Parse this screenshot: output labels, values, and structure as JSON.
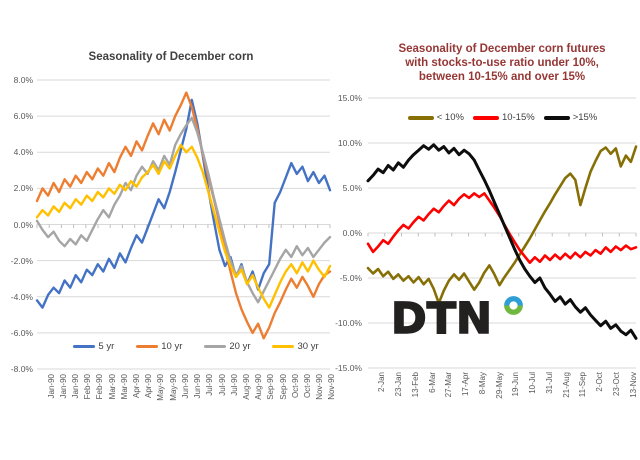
{
  "page": {
    "background": "#ffffff"
  },
  "logo": {
    "text": "DTN",
    "text_color": "#232020",
    "ring_top_color": "#2e9fd6",
    "ring_bottom_color": "#72b840"
  },
  "chart_data": [
    {
      "type": "line",
      "title": "Seasonality of December corn",
      "title_color": "#404040",
      "ylabel": "",
      "xlabel": "",
      "ylim": [
        -8,
        8
      ],
      "ytick_step": 2,
      "grid": true,
      "legend_position": "bottom-inside",
      "y_tick_labels": [
        "8.0%",
        "6.0%",
        "4.0%",
        "2.0%",
        "0.0%",
        "-2.0%",
        "-4.0%",
        "-6.0%",
        "-8.0%"
      ],
      "x_labels": [
        "Jan-90",
        "Jan-90",
        "Jan-90",
        "Feb-90",
        "Feb-90",
        "Mar-90",
        "Mar-90",
        "Apr-90",
        "Apr-90",
        "May-90",
        "May-90",
        "Jun-90",
        "Jun-90",
        "Jul-90",
        "Jul-90",
        "Jul-90",
        "Aug-90",
        "Aug-90",
        "Sep-90",
        "Sep-90",
        "Oct-90",
        "Oct-90",
        "Nov-90",
        "Nov-90"
      ],
      "series": [
        {
          "name": "5 yr",
          "color": "#4472c4",
          "values": [
            -4.2,
            -4.6,
            -3.9,
            -3.5,
            -3.8,
            -3.1,
            -3.5,
            -2.8,
            -3.2,
            -2.5,
            -2.8,
            -2.2,
            -2.6,
            -1.9,
            -2.4,
            -1.6,
            -2.1,
            -1.3,
            -0.6,
            -1.0,
            -0.2,
            0.6,
            1.4,
            0.9,
            1.8,
            2.9,
            4.1,
            5.3,
            6.9,
            5.6,
            3.8,
            1.9,
            0.2,
            -1.4,
            -2.3,
            -1.8,
            -2.9,
            -2.2,
            -3.3,
            -2.6,
            -3.6,
            -2.7,
            -2.2,
            1.2,
            1.8,
            2.6,
            3.4,
            2.8,
            3.2,
            2.4,
            2.9,
            2.3,
            2.7,
            1.9
          ]
        },
        {
          "name": "10 yr",
          "color": "#ed7d31",
          "values": [
            1.3,
            2.0,
            1.6,
            2.3,
            1.8,
            2.5,
            2.1,
            2.7,
            2.3,
            2.9,
            2.5,
            3.1,
            2.7,
            3.4,
            2.9,
            3.7,
            4.3,
            3.8,
            4.6,
            4.1,
            4.9,
            5.6,
            5.0,
            5.8,
            5.2,
            6.0,
            6.6,
            7.3,
            6.5,
            5.3,
            3.9,
            2.6,
            1.4,
            0.1,
            -1.3,
            -2.6,
            -3.8,
            -4.7,
            -5.4,
            -6.0,
            -5.5,
            -6.3,
            -5.7,
            -4.9,
            -4.3,
            -3.6,
            -3.0,
            -3.5,
            -2.9,
            -3.4,
            -4.0,
            -3.3,
            -2.8,
            -2.6
          ]
        },
        {
          "name": "20 yr",
          "color": "#a5a5a5",
          "values": [
            0.2,
            -0.3,
            -0.7,
            -0.4,
            -0.9,
            -1.2,
            -0.8,
            -1.1,
            -0.6,
            -0.9,
            -0.3,
            0.3,
            0.8,
            0.4,
            1.1,
            1.6,
            2.3,
            1.9,
            2.7,
            3.2,
            2.8,
            3.5,
            3.0,
            3.8,
            3.3,
            4.4,
            5.0,
            5.5,
            5.9,
            5.1,
            4.0,
            2.8,
            1.5,
            0.3,
            -0.9,
            -2.0,
            -2.8,
            -2.3,
            -3.2,
            -3.8,
            -4.3,
            -3.7,
            -3.1,
            -2.5,
            -1.9,
            -1.4,
            -1.8,
            -1.2,
            -1.7,
            -1.3,
            -1.8,
            -1.4,
            -1.0,
            -0.7
          ]
        },
        {
          "name": "30 yr",
          "color": "#ffc000",
          "values": [
            0.4,
            0.8,
            0.5,
            1.0,
            0.7,
            1.2,
            0.9,
            1.4,
            1.1,
            1.6,
            1.3,
            1.8,
            1.5,
            2.0,
            1.7,
            2.2,
            1.9,
            2.4,
            2.1,
            2.6,
            2.9,
            3.3,
            2.8,
            3.5,
            3.1,
            3.8,
            4.4,
            4.0,
            4.3,
            3.7,
            2.9,
            1.8,
            0.7,
            -0.4,
            -1.5,
            -2.3,
            -2.9,
            -2.5,
            -3.3,
            -2.8,
            -3.5,
            -4.1,
            -4.6,
            -3.9,
            -3.2,
            -2.6,
            -2.2,
            -2.7,
            -2.1,
            -2.6,
            -2.0,
            -2.5,
            -2.9,
            -2.3
          ]
        }
      ]
    },
    {
      "type": "line",
      "title": "Seasonality of December corn futures with stocks-to-use ratio under 10%, between 10-15% and over 15%",
      "title_lines": [
        "Seasonality of December corn futures",
        "with stocks-to-use ratio under 10%,",
        "between 10-15% and over 15%"
      ],
      "title_color": "#953735",
      "ylabel": "",
      "xlabel": "",
      "ylim": [
        -15,
        15
      ],
      "ytick_step": 5,
      "grid": true,
      "legend_position": "top-inside",
      "y_tick_labels": [
        "15.0%",
        "10.0%",
        "5.0%",
        "0.0%",
        "-5.0%",
        "-10.0%",
        "-15.0%"
      ],
      "x_labels": [
        "2-Jan",
        "23-Jan",
        "13-Feb",
        "6-Mar",
        "27-Mar",
        "17-Apr",
        "8-May",
        "29-May",
        "19-Jun",
        "10-Jul",
        "31-Jul",
        "21-Aug",
        "11-Sep",
        "2-Oct",
        "23-Oct",
        "13-Nov"
      ],
      "series": [
        {
          "name": "< 10%",
          "color": "#867006",
          "values": [
            -3.9,
            -4.5,
            -4.0,
            -4.8,
            -4.3,
            -5.1,
            -4.6,
            -5.3,
            -4.8,
            -5.5,
            -4.9,
            -5.7,
            -5.1,
            -6.2,
            -7.8,
            -6.4,
            -5.3,
            -4.6,
            -5.2,
            -4.5,
            -5.4,
            -6.3,
            -5.5,
            -4.4,
            -3.6,
            -4.6,
            -5.8,
            -4.9,
            -4.1,
            -3.3,
            -2.4,
            -1.5,
            -0.6,
            0.4,
            1.4,
            2.4,
            3.3,
            4.3,
            5.2,
            6.1,
            6.6,
            5.9,
            3.1,
            5.0,
            6.8,
            8.0,
            9.1,
            9.5,
            8.8,
            9.4,
            7.4,
            8.6,
            7.9,
            9.6
          ]
        },
        {
          "name": "10-15%",
          "color": "#ff0000",
          "values": [
            -1.2,
            -2.1,
            -1.5,
            -0.8,
            -1.2,
            -0.4,
            0.3,
            0.9,
            0.5,
            1.2,
            1.8,
            1.4,
            2.1,
            2.7,
            2.3,
            3.0,
            3.6,
            3.1,
            3.8,
            4.3,
            3.9,
            4.4,
            4.0,
            4.4,
            3.6,
            2.8,
            1.9,
            0.9,
            -0.1,
            -1.0,
            -1.9,
            -2.6,
            -3.3,
            -2.7,
            -3.2,
            -2.5,
            -3.0,
            -2.4,
            -2.9,
            -2.3,
            -2.8,
            -2.2,
            -2.7,
            -2.1,
            -2.5,
            -1.9,
            -2.3,
            -1.6,
            -2.1,
            -1.5,
            -1.9,
            -1.4,
            -1.8,
            -1.6
          ]
        },
        {
          "name": ">15%",
          "color": "#0d0d0d",
          "values": [
            5.8,
            6.4,
            7.1,
            6.7,
            7.5,
            7.0,
            7.8,
            7.3,
            8.1,
            8.7,
            9.2,
            9.7,
            9.3,
            9.8,
            9.2,
            9.6,
            8.9,
            9.4,
            8.7,
            9.2,
            8.8,
            8.1,
            7.0,
            5.9,
            4.7,
            3.4,
            2.1,
            0.8,
            -0.5,
            -1.8,
            -3.0,
            -4.0,
            -4.8,
            -5.5,
            -5.0,
            -6.1,
            -6.8,
            -7.6,
            -7.1,
            -7.9,
            -7.4,
            -8.2,
            -8.8,
            -8.3,
            -9.1,
            -9.7,
            -10.3,
            -9.8,
            -10.6,
            -10.2,
            -10.9,
            -11.3,
            -10.8,
            -11.7
          ]
        }
      ]
    }
  ]
}
